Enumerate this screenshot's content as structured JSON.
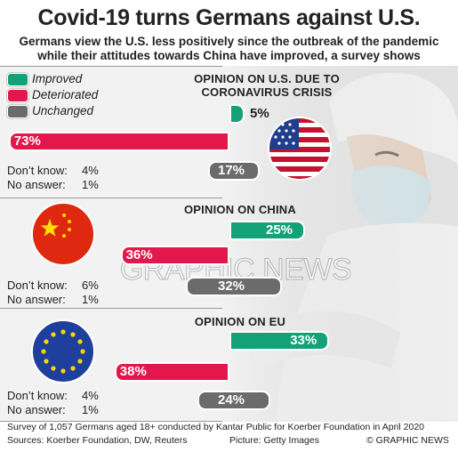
{
  "title": "Covid-19 turns Germans against U.S.",
  "subtitle_line1": "Germans view the U.S. less positively since the outbreak of the pandemic",
  "subtitle_line2": "while their attitudes towards China have improved, a survey shows",
  "legend": [
    {
      "label": "Improved",
      "color": "#13a277"
    },
    {
      "label": "Deteriorated",
      "color": "#e3174c"
    },
    {
      "label": "Unchanged",
      "color": "#6b6b6b"
    }
  ],
  "stat_labels": {
    "dont_know": "Don’t know:",
    "no_answer": "No answer:"
  },
  "chart_data": [
    {
      "type": "bar",
      "title_line1": "OPINION ON U.S. DUE TO",
      "title_line2": "CORONAVIRUS CRISIS",
      "categories": [
        "Improved",
        "Deteriorated",
        "Unchanged"
      ],
      "values": [
        5,
        73,
        17
      ],
      "labels": [
        "5%",
        "73%",
        "17%"
      ],
      "dont_know": "4%",
      "no_answer": "1%"
    },
    {
      "type": "bar",
      "title_line1": "OPINION ON CHINA",
      "title_line2": "",
      "categories": [
        "Improved",
        "Deteriorated",
        "Unchanged"
      ],
      "values": [
        25,
        36,
        32
      ],
      "labels": [
        "25%",
        "36%",
        "32%"
      ],
      "dont_know": "6%",
      "no_answer": "1%"
    },
    {
      "type": "bar",
      "title_line1": "OPINION ON EU",
      "title_line2": "",
      "categories": [
        "Improved",
        "Deteriorated",
        "Unchanged"
      ],
      "values": [
        33,
        38,
        24
      ],
      "labels": [
        "33%",
        "38%",
        "24%"
      ],
      "dont_know": "4%",
      "no_answer": "1%"
    }
  ],
  "watermark": "GRAPHIC NEWS",
  "footer": {
    "survey": "Survey of 1,057 Germans aged 18+ conducted by Kantar Public for Koerber Foundation in April 2020",
    "sources": "Sources: Koerber Foundation, DW, Reuters",
    "picture": "Picture: Getty Images",
    "copyright": "© GRAPHIC NEWS"
  }
}
